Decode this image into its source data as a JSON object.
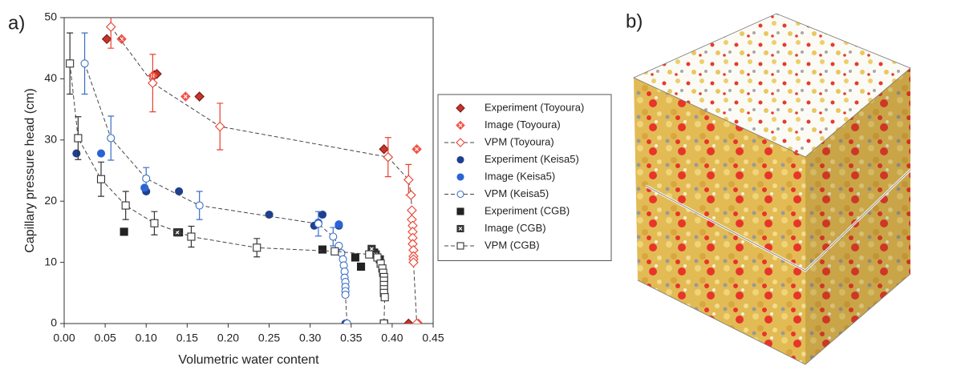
{
  "panel_labels": [
    "a)",
    "b)"
  ],
  "chart_data": {
    "type": "scatter",
    "x_label": "Volumetric water content",
    "y_label": "Capillary pressure head (cm)",
    "xlim": [
      0,
      0.45
    ],
    "ylim": [
      0,
      50
    ],
    "xticks": [
      {
        "value": 0,
        "label": "0.00"
      },
      0.05,
      {
        "value": 0.1,
        "label": "0.10"
      },
      0.15,
      {
        "value": 0.2,
        "label": "0.20"
      },
      0.25,
      {
        "value": 0.3,
        "label": "0.30"
      },
      0.35,
      {
        "value": 0.4,
        "label": "0.40"
      },
      0.45
    ],
    "yticks": [
      0,
      10,
      20,
      30,
      40,
      50
    ],
    "grid": false,
    "legend": "right",
    "line_color": "#444444",
    "series": [
      {
        "name": "Experiment (Toyoura)",
        "color": "#c8342a",
        "marker": "diamond",
        "fill": "solid",
        "line": false,
        "x": [
          0.052,
          0.11,
          0.113,
          0.165,
          0.39,
          0.42
        ],
        "values": [
          46.5,
          40.6,
          40.8,
          37.1,
          28.5,
          0
        ]
      },
      {
        "name": "Image (Toyoura)",
        "color": "#f2554a",
        "marker": "diamond",
        "fill": "hatched",
        "line": false,
        "x": [
          0.07,
          0.108,
          0.148,
          0.43,
          0.432
        ],
        "values": [
          46.5,
          40.5,
          37.1,
          28.5,
          0
        ]
      },
      {
        "name": "VPM (Toyoura)",
        "color": "#e8412f",
        "marker": "diamond",
        "fill": "open",
        "line": true,
        "x": [
          0.057,
          0.108,
          0.19,
          0.395,
          0.42,
          0.423,
          0.424,
          0.424,
          0.425,
          0.425,
          0.425,
          0.425,
          0.426,
          0.426,
          0.426,
          0.426,
          0.43
        ],
        "values": [
          48.5,
          39.3,
          32.2,
          27.2,
          23.5,
          21,
          18.5,
          17,
          16,
          15,
          14,
          13,
          12,
          11,
          10.5,
          10,
          0
        ],
        "errors": [
          3.5,
          4.7,
          3.8,
          3.2,
          2.5,
          null,
          null,
          null,
          null,
          null,
          null,
          null,
          null,
          null,
          null,
          null,
          null
        ]
      },
      {
        "name": "Experiment (Keisa5)",
        "color": "#1f3f8f",
        "marker": "circle",
        "fill": "solid",
        "line": false,
        "x": [
          0.015,
          0.1,
          0.14,
          0.25,
          0.305,
          0.315,
          0.335,
          0.343
        ],
        "values": [
          27.8,
          21.6,
          21.6,
          17.8,
          16,
          17.8,
          16,
          0
        ]
      },
      {
        "name": "Image (Keisa5)",
        "color": "#2a63d6",
        "marker": "circle",
        "fill": "solid",
        "line": false,
        "x": [
          0.045,
          0.098,
          0.31,
          0.335,
          0.345
        ],
        "values": [
          27.8,
          22.2,
          16.5,
          16.2,
          0
        ]
      },
      {
        "name": "VPM (Keisa5)",
        "color": "#3a6fc4",
        "marker": "circle",
        "fill": "open",
        "line": true,
        "x": [
          0.025,
          0.057,
          0.1,
          0.165,
          0.31,
          0.328,
          0.335,
          0.338,
          0.34,
          0.341,
          0.342,
          0.342,
          0.343,
          0.343,
          0.343,
          0.343,
          0.345
        ],
        "values": [
          42.5,
          30.3,
          23.7,
          19.3,
          16.3,
          14.2,
          12.7,
          11.5,
          10.5,
          9.5,
          8.5,
          7.5,
          6.8,
          6,
          5.3,
          4.7,
          0
        ],
        "errors": [
          5,
          3.6,
          1.8,
          2.3,
          2,
          1.5,
          null,
          null,
          null,
          null,
          null,
          null,
          null,
          null,
          null,
          null,
          null
        ]
      },
      {
        "name": "Experiment (CGB)",
        "color": "#222222",
        "marker": "square",
        "fill": "solid",
        "line": false,
        "x": [
          0.073,
          0.14,
          0.315,
          0.355,
          0.362,
          0.378,
          0.39
        ],
        "values": [
          15,
          14.9,
          12.1,
          10.8,
          9.3,
          11.6,
          0
        ]
      },
      {
        "name": "Image (CGB)",
        "color": "#333333",
        "marker": "square",
        "fill": "hatched",
        "line": false,
        "x": [
          0.138,
          0.375,
          0.38,
          0.385,
          0.39
        ],
        "values": [
          14.9,
          12.2,
          11.3,
          10.5,
          0
        ]
      },
      {
        "name": "VPM (CGB)",
        "color": "#333333",
        "marker": "square",
        "fill": "open",
        "line": true,
        "x": [
          0.007,
          0.017,
          0.045,
          0.075,
          0.11,
          0.155,
          0.235,
          0.33,
          0.372,
          0.382,
          0.386,
          0.388,
          0.389,
          0.39,
          0.39,
          0.39,
          0.39,
          0.39,
          0.391,
          0.39
        ],
        "values": [
          42.5,
          30.3,
          23.6,
          19.3,
          16.4,
          14.2,
          12.4,
          11.8,
          11.3,
          10.8,
          9.8,
          9,
          8.3,
          7.6,
          7,
          6.3,
          5.6,
          5,
          4.3,
          0
        ],
        "errors": [
          5,
          3.5,
          2.8,
          2.3,
          1.9,
          1.7,
          1.5,
          null,
          null,
          null,
          null,
          null,
          null,
          null,
          null,
          null,
          null,
          null,
          null,
          null
        ]
      }
    ]
  }
}
